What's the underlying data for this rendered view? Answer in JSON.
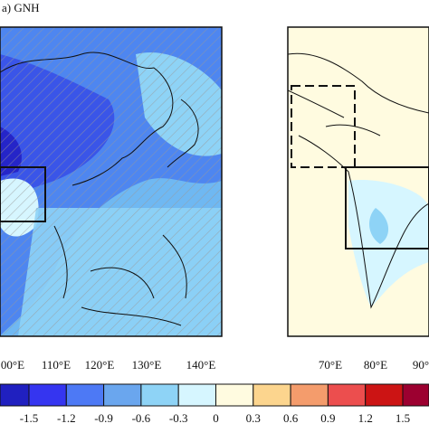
{
  "panel_a": {
    "label": "a) GNH",
    "x_ticks": [
      "00°E",
      "110°E",
      "120°E",
      "130°E",
      "140°E"
    ]
  },
  "panel_b": {
    "x_ticks": [
      "70°E",
      "80°E",
      "90°"
    ]
  },
  "colorbar": {
    "labels": [
      "-1.5",
      "-1.2",
      "-0.9",
      "-0.6",
      "-0.3",
      "0",
      "0.3",
      "0.6",
      "0.9",
      "1.2",
      "1.5"
    ],
    "colors": [
      "#2020c0",
      "#3535f0",
      "#4d79f5",
      "#6aa6ee",
      "#8ed3f6",
      "#d6f6ff",
      "#fffbe0",
      "#fcd58e",
      "#f49c6c",
      "#ec4e4e",
      "#cc1414",
      "#9c0030"
    ]
  }
}
